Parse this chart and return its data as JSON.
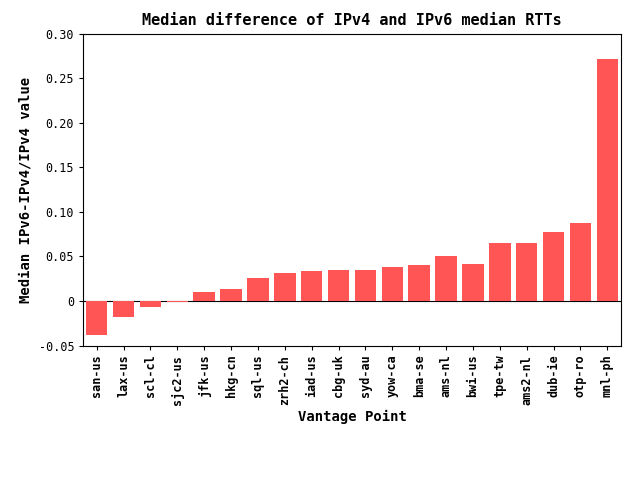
{
  "title": "Median difference of IPv4 and IPv6 median RTTs",
  "xlabel": "Vantage Point",
  "ylabel": "Median IPv6-IPv4/IPv4 value",
  "categories": [
    "san-us",
    "lax-us",
    "scl-cl",
    "sjc2-us",
    "jfk-us",
    "hkg-cn",
    "sql-us",
    "zrh2-ch",
    "iad-us",
    "cbg-uk",
    "syd-au",
    "yow-ca",
    "bma-se",
    "ams-nl",
    "bwi-us",
    "tpe-tw",
    "ams2-nl",
    "dub-ie",
    "otp-ro",
    "mnl-ph"
  ],
  "values": [
    -0.038,
    -0.018,
    -0.007,
    -0.001,
    0.01,
    0.013,
    0.026,
    0.031,
    0.034,
    0.035,
    0.035,
    0.038,
    0.04,
    0.05,
    0.042,
    0.065,
    0.065,
    0.077,
    0.088,
    0.272
  ],
  "bar_color": "#FF5555",
  "ylim": [
    -0.05,
    0.3
  ],
  "yticks": [
    -0.05,
    0.0,
    0.05,
    0.1,
    0.15,
    0.2,
    0.25,
    0.3
  ],
  "title_fontsize": 11,
  "label_fontsize": 10,
  "tick_fontsize": 8.5
}
